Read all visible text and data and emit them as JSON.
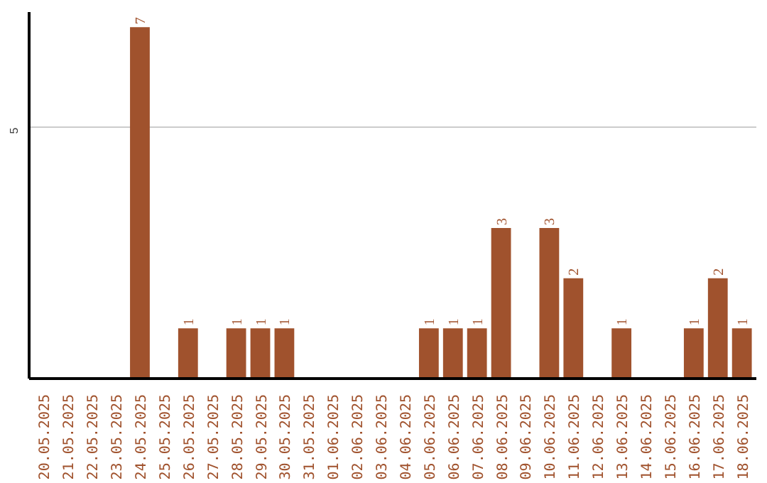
{
  "chart_data": {
    "type": "bar",
    "categories": [
      "20.05.2025",
      "21.05.2025",
      "22.05.2025",
      "23.05.2025",
      "24.05.2025",
      "25.05.2025",
      "26.05.2025",
      "27.05.2025",
      "28.05.2025",
      "29.05.2025",
      "30.05.2025",
      "31.05.2025",
      "01.06.2025",
      "02.06.2025",
      "03.06.2025",
      "04.06.2025",
      "05.06.2025",
      "06.06.2025",
      "07.06.2025",
      "08.06.2025",
      "09.06.2025",
      "10.06.2025",
      "11.06.2025",
      "12.06.2025",
      "13.06.2025",
      "14.06.2025",
      "15.06.2025",
      "16.06.2025",
      "17.06.2025",
      "18.06.2025"
    ],
    "values": [
      0,
      0,
      0,
      0,
      7,
      0,
      1,
      0,
      1,
      1,
      1,
      0,
      0,
      0,
      0,
      0,
      1,
      1,
      1,
      3,
      0,
      3,
      2,
      0,
      1,
      0,
      0,
      1,
      2,
      1
    ],
    "value_labels": [
      null,
      null,
      null,
      null,
      "7",
      null,
      "1",
      null,
      "1",
      "1",
      "1",
      null,
      null,
      null,
      null,
      null,
      "1",
      "1",
      "1",
      "3",
      null,
      "3",
      "2",
      null,
      "1",
      null,
      null,
      "1",
      "2",
      "1"
    ],
    "color": "#a0522d",
    "ylim": [
      0,
      7.3
    ],
    "yticks": [
      5
    ],
    "grid": "y"
  }
}
